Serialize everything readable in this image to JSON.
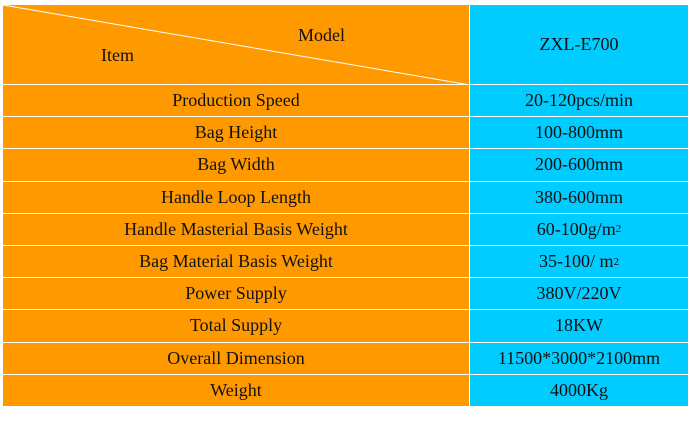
{
  "header": {
    "model_label": "Model",
    "item_label": "Item",
    "model": "ZXL-E700"
  },
  "table": {
    "rows": [
      {
        "item": "Production Speed",
        "value": "20-120pcs/min"
      },
      {
        "item": "Bag Height",
        "value": "100-800mm"
      },
      {
        "item": "Bag Width",
        "value": "200-600mm"
      },
      {
        "item": "Handle Loop Length",
        "value": "380-600mm"
      },
      {
        "item": "Handle Masterial Basis Weight",
        "value": "60-100g/m",
        "sup": "2"
      },
      {
        "item": "Bag Material Basis Weight",
        "value": "35-100/ m",
        "sup": "2"
      },
      {
        "item": "Power Supply",
        "value": "380V/220V"
      },
      {
        "item": "Total Supply",
        "value": "18KW"
      },
      {
        "item": "Overall Dimension",
        "value": "11500*3000*2100mm"
      },
      {
        "item": "Weight",
        "value": "4000Kg"
      }
    ]
  }
}
